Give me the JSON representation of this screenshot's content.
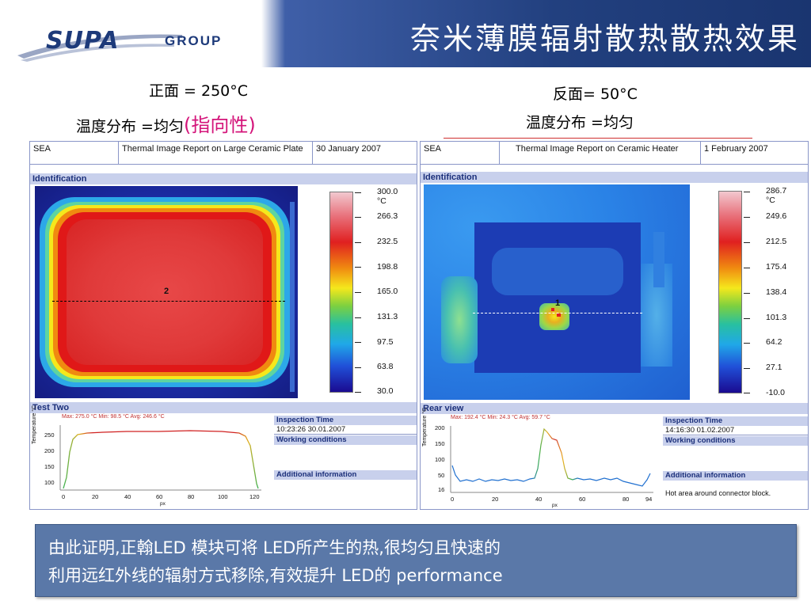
{
  "logo": {
    "main": "SUPA",
    "group": "GROUP"
  },
  "title": "奈米薄膜辐射散热散热效果",
  "captions": {
    "front_line1": "正面 = 250°C",
    "front_line2_main": "温度分布 =均匀",
    "front_line2_highlight": "(指向性)",
    "back_line1": "反面= 50°C",
    "back_line2": "温度分布 =均匀"
  },
  "report_left": {
    "company": "SEA",
    "report_title": "Thermal Image Report on Large Ceramic Plate",
    "date": "30 January 2007",
    "identification_label": "Identification",
    "marker": "2",
    "scale_ticks": [
      "300.0",
      "°C",
      "266.3",
      "232.5",
      "198.8",
      "165.0",
      "131.3",
      "97.5",
      "63.8",
      "30.0"
    ],
    "section_label": "Test Two",
    "graph_stats": "Max: 275.0 °C   Min: 98.5 °C   Avg: 246.6 °C",
    "graph_ylabel": "Temperature °C",
    "graph_xlabel": "px",
    "graph_yticks": [
      "250",
      "200",
      "150",
      "100"
    ],
    "graph_xticks": [
      "0",
      "20",
      "40",
      "60",
      "80",
      "100",
      "120"
    ],
    "inspection_time_label": "Inspection Time",
    "inspection_time": "10:23:26 30.01.2007",
    "working_conditions_label": "Working conditions",
    "additional_info_label": "Additional information",
    "additional_info": ""
  },
  "report_right": {
    "company": "SEA",
    "report_title": "Thermal Image Report on Ceramic Heater",
    "date": "1 February 2007",
    "identification_label": "Identification",
    "marker": "1",
    "scale_ticks": [
      "286.7",
      "°C",
      "249.6",
      "212.5",
      "175.4",
      "138.4",
      "101.3",
      "64.2",
      "27.1",
      "-10.0"
    ],
    "section_label": "Rear view",
    "graph_stats": "Max: 192.4 °C   Min: 24.3 °C   Avg: 59.7 °C",
    "graph_ylabel": "Temperature °C",
    "graph_xlabel": "px",
    "graph_yticks": [
      "200",
      "150",
      "100",
      "50",
      "16"
    ],
    "graph_xticks": [
      "0",
      "20",
      "40",
      "60",
      "80",
      "94"
    ],
    "inspection_time_label": "Inspection Time",
    "inspection_time": "14:16:30 01.02.2007",
    "working_conditions_label": "Working conditions",
    "additional_info_label": "Additional information",
    "additional_info": "Hot area around connector block."
  },
  "bottom": {
    "line1": "由此证明,正翰LED 模块可将 LED所产生的热,很均匀且快速的",
    "line2": "利用远红外线的辐射方式移除,有效提升 LED的 performance"
  },
  "colors": {
    "header_blue": "#22407f",
    "logo_blue": "#1d3a7a",
    "highlight": "#d4147a",
    "bottom_box": "#5a78a8"
  }
}
